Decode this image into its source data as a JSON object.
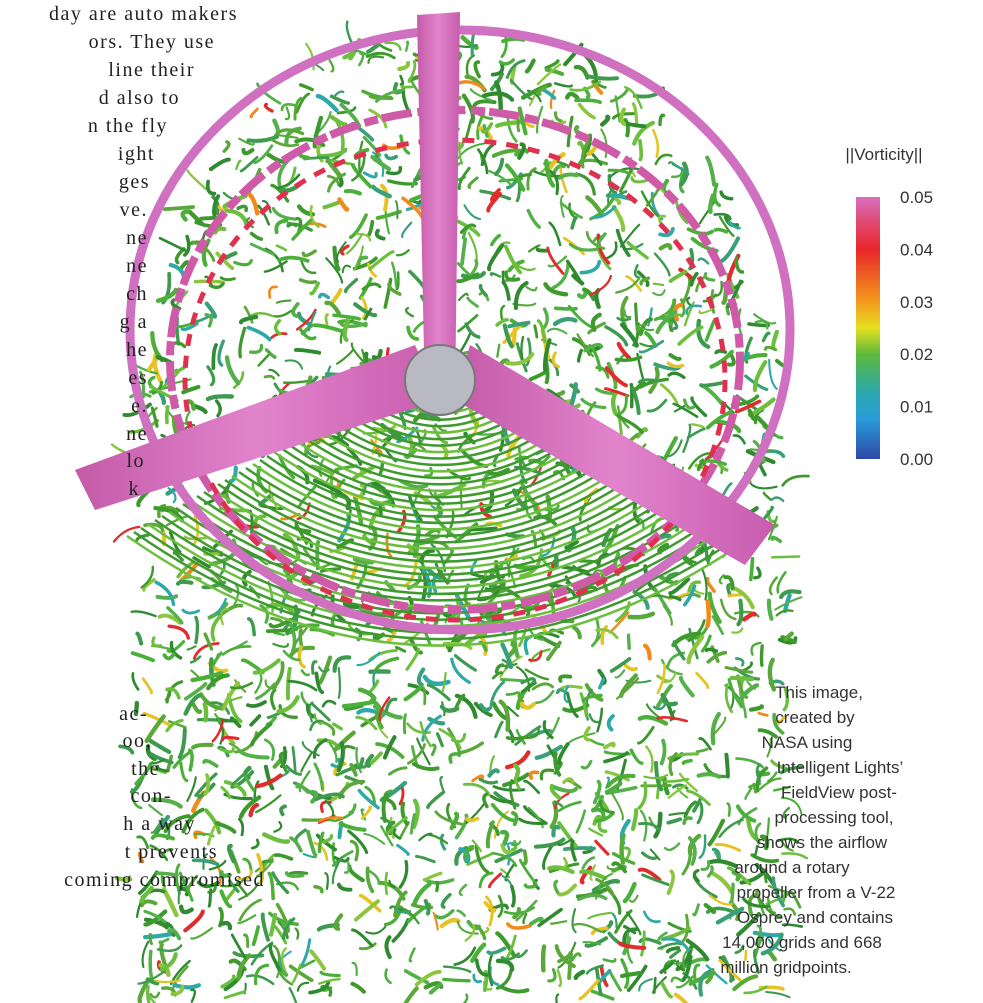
{
  "body_text": {
    "lines_top": [
      "day are auto makers",
      "ors. They use",
      "line their",
      "d also to",
      "n the fly",
      "ight",
      "ges",
      "ve.",
      "ne",
      "ne",
      "ch",
      "g a",
      "he",
      "es",
      "e.",
      "ne",
      "lo",
      "k"
    ],
    "lines_bottom": [
      "ac-",
      "oo,",
      "the",
      "con-",
      "h a way",
      "t prevents",
      "coming compromised"
    ]
  },
  "colorbar": {
    "title": "||Vorticity||",
    "ticks": [
      "0.05",
      "0.04",
      "0.03",
      "0.02",
      "0.01",
      "0.00"
    ]
  },
  "caption": {
    "lines": [
      "This image,",
      "created by",
      "NASA using",
      "Intelligent Lights’",
      "FieldView post-",
      "processing tool,",
      "shows the airflow",
      "around a rotary",
      "propeller from a V-22",
      "Osprey and contains",
      "14,000 grids and 668",
      "million gridpoints."
    ]
  }
}
